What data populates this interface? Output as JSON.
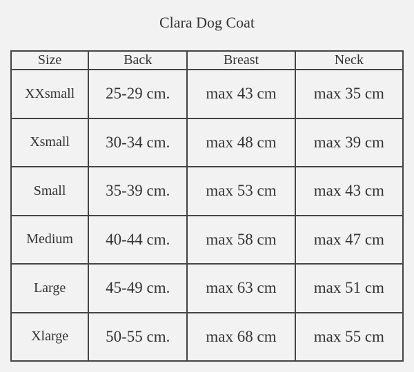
{
  "title": "Clara Dog Coat",
  "table": {
    "header": [
      "Size",
      "Back",
      "Breast",
      "Neck"
    ],
    "rows": [
      [
        "XXsmall",
        "25-29 cm.",
        "max 43 cm",
        "max 35 cm"
      ],
      [
        "Xsmall",
        "30-34 cm.",
        "max 48 cm",
        "max 39 cm"
      ],
      [
        "Small",
        "35-39 cm.",
        "max 53 cm",
        "max 43 cm"
      ],
      [
        "Medium",
        "40-44 cm.",
        "max 58 cm",
        "max 47 cm"
      ],
      [
        "Large",
        "45-49 cm.",
        "max 63 cm",
        "max 51 cm"
      ],
      [
        "Xlarge",
        "50-55 cm.",
        "max 68 cm",
        "max 55 cm"
      ]
    ]
  }
}
